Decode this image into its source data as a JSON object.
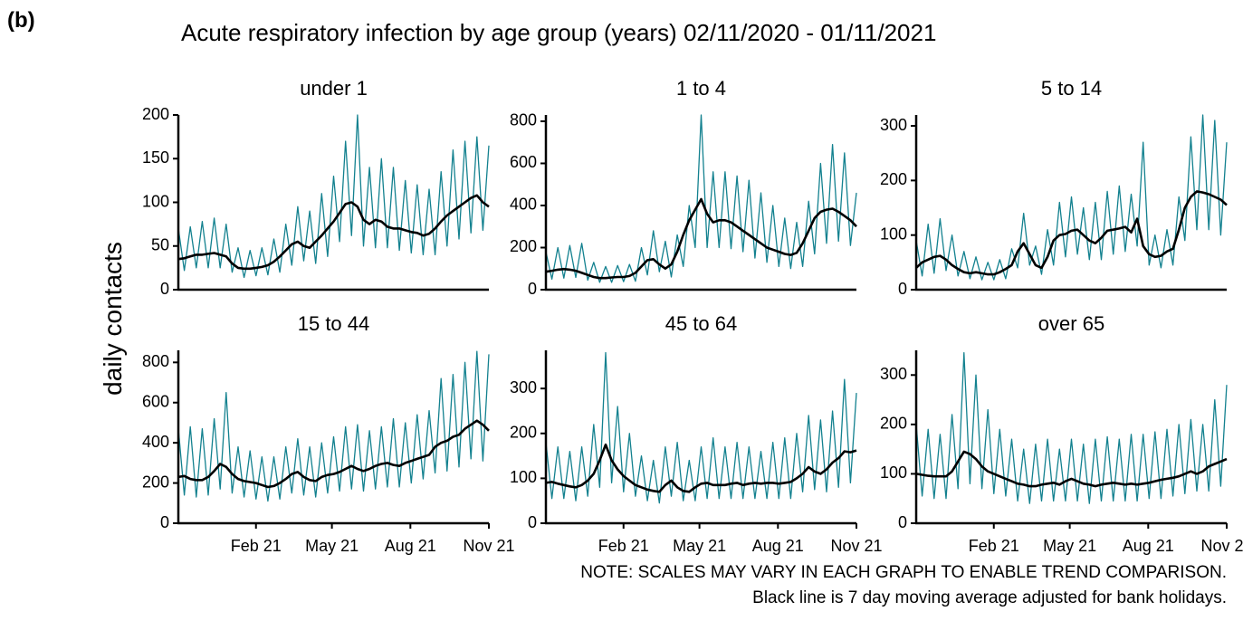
{
  "chart_data": {
    "type": "line",
    "label": "(b)",
    "title": "Acute respiratory infection by age group (years) 02/11/2020 - 01/11/2021",
    "y_label": "daily contacts",
    "note": "NOTE: SCALES MAY VARY IN EACH GRAPH TO ENABLE TREND COMPARISON.",
    "footnote": "Black line is 7 day moving average adjusted for bank holidays.",
    "xlim": [
      0,
      364
    ],
    "xticks": [
      {
        "value": 91,
        "label": "Feb 21"
      },
      {
        "value": 180,
        "label": "May 21"
      },
      {
        "value": 272,
        "label": "Aug 21"
      },
      {
        "value": 364,
        "label": "Nov 21"
      }
    ],
    "x": [
      0,
      7,
      14,
      21,
      28,
      35,
      42,
      49,
      56,
      63,
      70,
      77,
      84,
      91,
      98,
      105,
      112,
      119,
      126,
      133,
      140,
      147,
      154,
      161,
      168,
      175,
      182,
      189,
      196,
      203,
      210,
      217,
      224,
      231,
      238,
      245,
      252,
      259,
      266,
      273,
      280,
      287,
      294,
      301,
      308,
      315,
      322,
      329,
      336,
      343,
      350,
      357,
      364
    ],
    "facets": [
      {
        "title": "under 1",
        "ylim": [
          0,
          200
        ],
        "yticks": [
          0,
          50,
          100,
          150,
          200
        ],
        "series": [
          {
            "color": "#13818f",
            "values": [
              70,
              22,
              72,
              25,
              78,
              25,
              82,
              25,
              75,
              20,
              48,
              14,
              45,
              16,
              48,
              17,
              58,
              20,
              75,
              28,
              95,
              33,
              90,
              30,
              110,
              38,
              130,
              55,
              170,
              62,
              200,
              50,
              140,
              48,
              150,
              48,
              140,
              45,
              125,
              42,
              120,
              40,
              115,
              40,
              135,
              50,
              160,
              58,
              170,
              65,
              175,
              68,
              165
            ]
          },
          {
            "color": "#000000",
            "values": [
              35,
              36,
              38,
              40,
              40,
              41,
              42,
              40,
              38,
              30,
              25,
              24,
              24,
              25,
              26,
              28,
              32,
              38,
              45,
              52,
              55,
              50,
              48,
              55,
              62,
              70,
              78,
              88,
              98,
              100,
              95,
              80,
              75,
              80,
              78,
              72,
              70,
              70,
              68,
              66,
              65,
              62,
              64,
              70,
              78,
              85,
              90,
              95,
              100,
              105,
              108,
              100,
              95
            ]
          }
        ]
      },
      {
        "title": "1 to 4",
        "ylim": [
          0,
          830
        ],
        "yticks": [
          0,
          200,
          400,
          600,
          800
        ],
        "series": [
          {
            "color": "#13818f",
            "values": [
              180,
              50,
              200,
              55,
              210,
              58,
              220,
              45,
              130,
              35,
              110,
              35,
              115,
              38,
              120,
              40,
              200,
              70,
              280,
              85,
              230,
              60,
              260,
              110,
              400,
              200,
              830,
              200,
              560,
              200,
              560,
              195,
              540,
              180,
              520,
              150,
              460,
              130,
              400,
              110,
              340,
              100,
              320,
              110,
              420,
              170,
              600,
              220,
              690,
              230,
              650,
              210,
              460
            ]
          },
          {
            "color": "#000000",
            "values": [
              85,
              90,
              95,
              98,
              95,
              90,
              80,
              70,
              60,
              55,
              55,
              58,
              60,
              60,
              65,
              80,
              110,
              140,
              145,
              120,
              100,
              120,
              180,
              260,
              330,
              380,
              430,
              360,
              320,
              330,
              330,
              320,
              300,
              280,
              260,
              240,
              220,
              200,
              190,
              180,
              170,
              165,
              175,
              220,
              280,
              340,
              370,
              380,
              385,
              370,
              350,
              330,
              300
            ]
          }
        ]
      },
      {
        "title": "5 to 14",
        "ylim": [
          0,
          320
        ],
        "yticks": [
          0,
          100,
          200,
          300
        ],
        "series": [
          {
            "color": "#13818f",
            "values": [
              90,
              25,
              120,
              30,
              130,
              35,
              100,
              25,
              70,
              20,
              60,
              18,
              50,
              18,
              55,
              20,
              75,
              40,
              140,
              45,
              80,
              28,
              110,
              45,
              160,
              60,
              170,
              65,
              150,
              55,
              160,
              55,
              180,
              65,
              190,
              70,
              175,
              80,
              270,
              45,
              100,
              40,
              110,
              45,
              170,
              90,
              280,
              110,
              320,
              110,
              310,
              100,
              270
            ]
          },
          {
            "color": "#000000",
            "values": [
              40,
              50,
              55,
              60,
              62,
              55,
              45,
              38,
              32,
              30,
              32,
              30,
              28,
              28,
              32,
              38,
              45,
              70,
              85,
              65,
              45,
              40,
              60,
              90,
              100,
              102,
              108,
              110,
              100,
              90,
              85,
              95,
              108,
              110,
              112,
              115,
              105,
              130,
              80,
              65,
              60,
              62,
              70,
              75,
              110,
              150,
              170,
              180,
              178,
              175,
              170,
              165,
              155
            ]
          }
        ]
      },
      {
        "title": "15 to 44",
        "ylim": [
          0,
          860
        ],
        "yticks": [
          0,
          200,
          400,
          600,
          800
        ],
        "series": [
          {
            "color": "#13818f",
            "values": [
              470,
              140,
              480,
              130,
              470,
              140,
              520,
              170,
              650,
              150,
              380,
              130,
              360,
              120,
              330,
              110,
              330,
              120,
              380,
              150,
              420,
              140,
              380,
              130,
              400,
              150,
              430,
              160,
              480,
              170,
              490,
              160,
              460,
              170,
              480,
              180,
              520,
              180,
              500,
              200,
              540,
              220,
              560,
              250,
              720,
              260,
              740,
              280,
              800,
              320,
              855,
              310,
              840
            ]
          },
          {
            "color": "#000000",
            "values": [
              230,
              235,
              220,
              215,
              215,
              230,
              260,
              295,
              280,
              245,
              220,
              210,
              205,
              200,
              190,
              180,
              185,
              200,
              220,
              245,
              255,
              230,
              215,
              210,
              230,
              240,
              245,
              255,
              270,
              285,
              270,
              260,
              270,
              285,
              295,
              300,
              290,
              285,
              300,
              310,
              320,
              330,
              340,
              380,
              400,
              410,
              430,
              440,
              470,
              490,
              510,
              490,
              460
            ]
          }
        ]
      },
      {
        "title": "45 to 64",
        "ylim": [
          0,
          385
        ],
        "yticks": [
          0,
          100,
          200,
          300
        ],
        "series": [
          {
            "color": "#13818f",
            "values": [
              180,
              55,
              170,
              55,
              160,
              50,
              170,
              60,
              220,
              80,
              380,
              90,
              260,
              70,
              200,
              60,
              150,
              50,
              140,
              45,
              170,
              60,
              180,
              50,
              140,
              50,
              170,
              55,
              190,
              55,
              170,
              55,
              180,
              55,
              170,
              55,
              160,
              55,
              180,
              55,
              190,
              55,
              200,
              70,
              240,
              75,
              230,
              70,
              250,
              80,
              320,
              90,
              290
            ]
          },
          {
            "color": "#000000",
            "values": [
              90,
              92,
              88,
              85,
              82,
              80,
              85,
              95,
              110,
              140,
              175,
              140,
              120,
              105,
              95,
              85,
              80,
              75,
              72,
              70,
              85,
              95,
              80,
              72,
              70,
              80,
              88,
              90,
              85,
              85,
              85,
              88,
              90,
              85,
              88,
              90,
              88,
              90,
              90,
              88,
              90,
              92,
              100,
              110,
              125,
              115,
              110,
              120,
              135,
              145,
              160,
              158,
              162
            ]
          }
        ]
      },
      {
        "title": "over 65",
        "ylim": [
          0,
          350
        ],
        "yticks": [
          0,
          100,
          200,
          300
        ],
        "series": [
          {
            "color": "#13818f",
            "values": [
              200,
              55,
              190,
              50,
              180,
              50,
              220,
              70,
              345,
              80,
              300,
              70,
              230,
              60,
              190,
              55,
              170,
              45,
              150,
              40,
              160,
              45,
              170,
              45,
              150,
              45,
              170,
              45,
              160,
              40,
              170,
              45,
              175,
              45,
              170,
              45,
              180,
              45,
              180,
              50,
              185,
              50,
              190,
              55,
              200,
              60,
              210,
              65,
              200,
              65,
              250,
              75,
              280
            ]
          },
          {
            "color": "#000000",
            "values": [
              100,
              98,
              96,
              95,
              95,
              95,
              105,
              125,
              145,
              140,
              130,
              115,
              105,
              100,
              95,
              90,
              85,
              80,
              78,
              75,
              75,
              78,
              80,
              82,
              78,
              85,
              90,
              85,
              80,
              78,
              75,
              78,
              80,
              82,
              80,
              78,
              80,
              78,
              80,
              82,
              85,
              88,
              90,
              92,
              95,
              100,
              105,
              100,
              105,
              115,
              120,
              125,
              130
            ]
          }
        ]
      }
    ]
  }
}
